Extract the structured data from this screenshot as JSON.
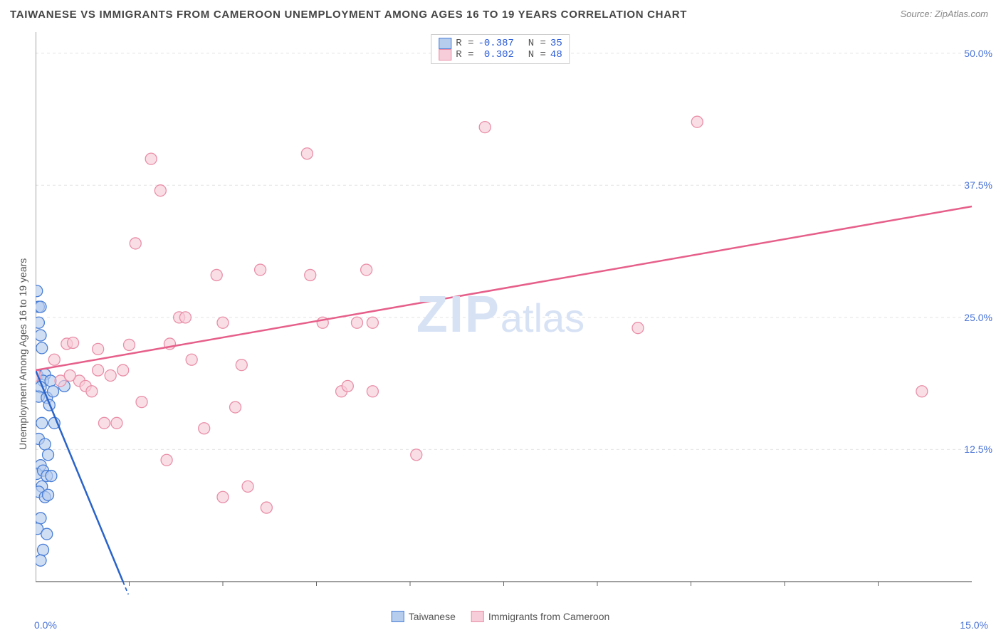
{
  "title": "TAIWANESE VS IMMIGRANTS FROM CAMEROON UNEMPLOYMENT AMONG AGES 16 TO 19 YEARS CORRELATION CHART",
  "source": "Source: ZipAtlas.com",
  "ylabel": "Unemployment Among Ages 16 to 19 years",
  "watermark": {
    "zip": "ZIP",
    "atlas": "atlas"
  },
  "chart": {
    "type": "correlation-scatter",
    "background_color": "#ffffff",
    "grid_color": "#e4e4e4",
    "grid_dash": "4 4",
    "axis_color": "#666666",
    "xlim": [
      0,
      15
    ],
    "ylim": [
      0,
      52
    ],
    "x_ticks_minor_step": 1.5,
    "y_gridlines": [
      12.5,
      25.0,
      37.5,
      50.0
    ],
    "xtick_labels": {
      "left": "0.0%",
      "right": "15.0%"
    },
    "ytick_labels": [
      "12.5%",
      "25.0%",
      "37.5%",
      "50.0%"
    ],
    "label_color": "#4a74d6",
    "label_fontsize": 14,
    "point_radius": 8,
    "point_stroke_width": 1.3,
    "trend_line_width": 2.5,
    "series": [
      {
        "name": "Taiwanese",
        "fill": "#b7cdee",
        "stroke": "#4a7fd6",
        "trend_color": "#2a63c9",
        "R": "-0.387",
        "N": "35",
        "trend": {
          "x1": 0.0,
          "y1": 20.0,
          "x2": 1.4,
          "y2": 0.0
        },
        "trend_dashed_after": true,
        "points": [
          [
            0.02,
            27.5
          ],
          [
            0.05,
            26.0
          ],
          [
            0.08,
            26.0
          ],
          [
            0.05,
            24.5
          ],
          [
            0.08,
            23.3
          ],
          [
            0.1,
            22.1
          ],
          [
            0.03,
            19.5
          ],
          [
            0.15,
            19.6
          ],
          [
            0.12,
            19.0
          ],
          [
            0.24,
            19.0
          ],
          [
            0.08,
            18.4
          ],
          [
            0.05,
            17.5
          ],
          [
            0.18,
            17.4
          ],
          [
            0.22,
            16.7
          ],
          [
            0.28,
            18.0
          ],
          [
            0.1,
            15.0
          ],
          [
            0.3,
            15.0
          ],
          [
            0.05,
            13.5
          ],
          [
            0.15,
            13.0
          ],
          [
            0.2,
            12.0
          ],
          [
            0.08,
            11.0
          ],
          [
            0.02,
            10.2
          ],
          [
            0.12,
            10.5
          ],
          [
            0.18,
            10.0
          ],
          [
            0.25,
            10.0
          ],
          [
            0.1,
            9.0
          ],
          [
            0.05,
            8.5
          ],
          [
            0.15,
            8.0
          ],
          [
            0.2,
            8.2
          ],
          [
            0.08,
            6.0
          ],
          [
            0.03,
            5.0
          ],
          [
            0.18,
            4.5
          ],
          [
            0.12,
            3.0
          ],
          [
            0.08,
            2.0
          ],
          [
            0.46,
            18.5
          ]
        ]
      },
      {
        "name": "Immigrants from Cameroon",
        "fill": "#f7cdd9",
        "stroke": "#e98fa8",
        "trend_color": "#e65f8a",
        "R": "0.302",
        "N": "48",
        "trend": {
          "x1": 0.0,
          "y1": 20.0,
          "x2": 15.0,
          "y2": 35.5
        },
        "trend_dashed_after": false,
        "points": [
          [
            0.0,
            19.5
          ],
          [
            0.3,
            21.0
          ],
          [
            0.5,
            22.5
          ],
          [
            0.6,
            22.6
          ],
          [
            0.7,
            19.0
          ],
          [
            0.8,
            18.5
          ],
          [
            0.9,
            18.0
          ],
          [
            1.0,
            20.0
          ],
          [
            1.1,
            15.0
          ],
          [
            1.2,
            19.5
          ],
          [
            1.3,
            15.0
          ],
          [
            1.5,
            22.4
          ],
          [
            1.6,
            32.0
          ],
          [
            1.7,
            17.0
          ],
          [
            1.85,
            40.0
          ],
          [
            2.0,
            37.0
          ],
          [
            2.1,
            11.5
          ],
          [
            2.15,
            22.5
          ],
          [
            2.3,
            25.0
          ],
          [
            2.4,
            25.0
          ],
          [
            2.5,
            21.0
          ],
          [
            2.7,
            14.5
          ],
          [
            2.9,
            29.0
          ],
          [
            3.0,
            8.0
          ],
          [
            3.0,
            24.5
          ],
          [
            3.2,
            16.5
          ],
          [
            3.3,
            20.5
          ],
          [
            3.4,
            9.0
          ],
          [
            3.6,
            29.5
          ],
          [
            3.7,
            7.0
          ],
          [
            4.35,
            40.5
          ],
          [
            4.4,
            29.0
          ],
          [
            4.6,
            24.5
          ],
          [
            4.9,
            18.0
          ],
          [
            5.0,
            18.5
          ],
          [
            5.15,
            24.5
          ],
          [
            5.3,
            29.5
          ],
          [
            5.4,
            24.5
          ],
          [
            5.4,
            18.0
          ],
          [
            6.1,
            12.0
          ],
          [
            7.2,
            43.0
          ],
          [
            9.65,
            24.0
          ],
          [
            10.6,
            43.5
          ],
          [
            14.2,
            18.0
          ],
          [
            0.4,
            19.0
          ],
          [
            0.55,
            19.5
          ],
          [
            1.0,
            22.0
          ],
          [
            1.4,
            20.0
          ]
        ]
      }
    ],
    "legend_top": {
      "border_color": "#cccccc",
      "rows": [
        {
          "swatch_fill": "#b7cdee",
          "swatch_stroke": "#4a7fd6",
          "r_label": "R =",
          "r_val": "-0.387",
          "n_label": "N =",
          "n_val": "35"
        },
        {
          "swatch_fill": "#f7cdd9",
          "swatch_stroke": "#e98fa8",
          "r_label": "R =",
          "r_val": " 0.302",
          "n_label": "N =",
          "n_val": "48"
        }
      ]
    },
    "legend_bottom": [
      {
        "swatch_fill": "#b7cdee",
        "swatch_stroke": "#4a7fd6",
        "label": "Taiwanese"
      },
      {
        "swatch_fill": "#f7cdd9",
        "swatch_stroke": "#e98fa8",
        "label": "Immigrants from Cameroon"
      }
    ]
  }
}
